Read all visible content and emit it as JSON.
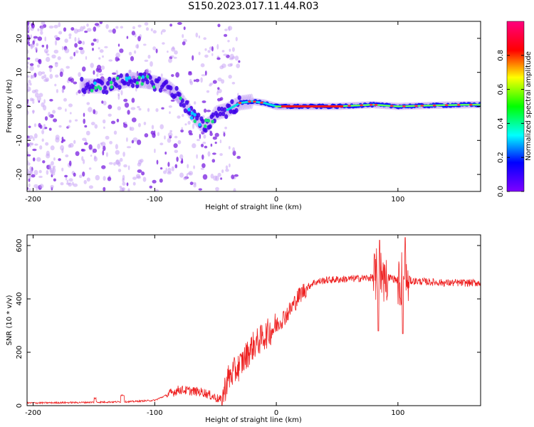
{
  "title": "S150.2023.017.11.44.R03",
  "chart_data": [
    {
      "type": "heatmap",
      "xlabel": "Height of straight line (km)",
      "ylabel": "Frequency (Hz)",
      "xlim": [
        -205,
        168
      ],
      "ylim": [
        -25,
        25
      ],
      "xticks": [
        -200,
        -100,
        0,
        100
      ],
      "yticks": [
        -20,
        -10,
        0,
        10,
        20
      ],
      "colorbar": {
        "label": "Normalized spectral amplitude",
        "range": [
          0,
          1
        ],
        "ticks": [
          0.0,
          0.2,
          0.4,
          0.6,
          0.8
        ],
        "colormap": [
          "#7f00ff",
          "#0000ff",
          "#00ffff",
          "#00ff00",
          "#ffff00",
          "#ff0000",
          "#ff007f"
        ]
      },
      "ridge": {
        "x": [
          -160,
          -140,
          -120,
          -100,
          -90,
          -80,
          -70,
          -60,
          -55,
          -50,
          -40,
          -30,
          -20,
          -10,
          0,
          20,
          50,
          80,
          100,
          130,
          160
        ],
        "y": [
          6,
          6,
          8,
          7,
          6,
          3,
          -2,
          -6,
          -5,
          -2,
          -1,
          1,
          1.5,
          1,
          0,
          0,
          0,
          0.5,
          0,
          0.3,
          0.5
        ]
      }
    },
    {
      "type": "line",
      "xlabel": "Height of straight line (km)",
      "ylabel": "SNR (10 * v/v)",
      "xlim": [
        -205,
        168
      ],
      "ylim": [
        0,
        640
      ],
      "xticks": [
        -200,
        -100,
        0,
        100
      ],
      "yticks": [
        0,
        200,
        400,
        600
      ],
      "line_color": "#ee2020",
      "trend": {
        "x": [
          -205,
          -160,
          -120,
          -100,
          -80,
          -60,
          -45,
          -40,
          -30,
          -20,
          -10,
          0,
          10,
          20,
          30,
          40,
          60,
          80,
          90,
          100,
          120,
          140,
          168
        ],
        "y": [
          10,
          12,
          15,
          20,
          60,
          50,
          20,
          100,
          150,
          220,
          260,
          300,
          350,
          420,
          460,
          470,
          475,
          480,
          485,
          470,
          465,
          460,
          460
        ]
      },
      "spikes": [
        {
          "x": 84,
          "y": 280
        },
        {
          "x": 85,
          "y": 620
        },
        {
          "x": 104,
          "y": 270
        },
        {
          "x": 106,
          "y": 630
        }
      ]
    }
  ]
}
